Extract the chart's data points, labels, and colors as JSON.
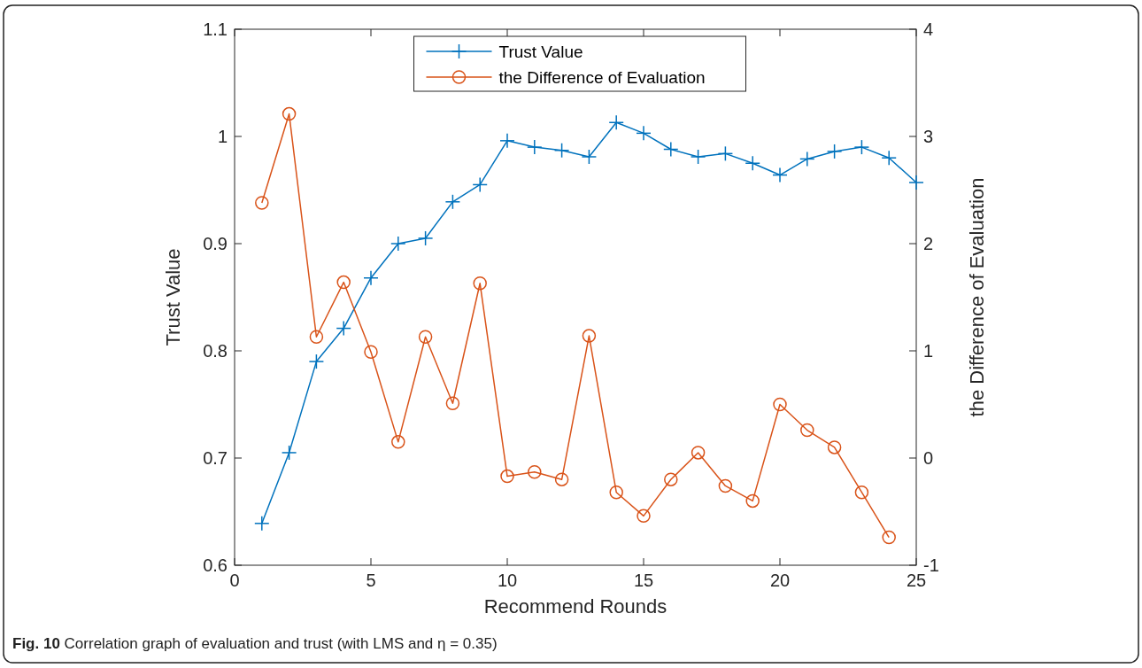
{
  "chart_data": {
    "type": "line",
    "xlabel": "Recommend Rounds",
    "ylabel": "Trust Value",
    "y2label": "the Difference of Evaluation",
    "x": [
      1,
      2,
      3,
      4,
      5,
      6,
      7,
      8,
      9,
      10,
      11,
      12,
      13,
      14,
      15,
      16,
      17,
      18,
      19,
      20,
      21,
      22,
      23,
      24,
      25
    ],
    "series": [
      {
        "name": "Trust Value",
        "color": "#0072bd",
        "marker": "cross",
        "values": [
          0.639,
          0.705,
          0.79,
          0.821,
          0.868,
          0.9,
          0.905,
          0.939,
          0.955,
          0.996,
          0.99,
          0.987,
          0.981,
          1.013,
          1.003,
          0.988,
          0.981,
          0.984,
          0.975,
          0.964,
          0.979,
          0.986,
          0.99,
          0.98,
          0.957
        ]
      },
      {
        "name": "the Difference of Evaluation",
        "color": "#d95319",
        "marker": "circle",
        "axis": "y2",
        "x": [
          1,
          2,
          3,
          4,
          5,
          6,
          7,
          8,
          9,
          10,
          11,
          12,
          13,
          14,
          15,
          16,
          17,
          18,
          19,
          20,
          21,
          22,
          23,
          24
        ],
        "values": [
          2.38,
          3.21,
          1.13,
          1.64,
          0.99,
          0.15,
          1.13,
          0.51,
          1.63,
          -0.17,
          -0.13,
          -0.2,
          1.14,
          -0.32,
          -0.54,
          -0.2,
          0.05,
          -0.26,
          -0.4,
          0.5,
          0.26,
          0.1,
          -0.32,
          -0.74
        ]
      }
    ],
    "xlim": [
      0,
      25
    ],
    "xticks": [
      0,
      5,
      10,
      15,
      20,
      25
    ],
    "ylim": [
      0.6,
      1.1
    ],
    "yticks": [
      0.6,
      0.7,
      0.8,
      0.9,
      1,
      1.1
    ],
    "y2lim": [
      -1,
      4
    ],
    "y2ticks": [
      -1,
      0,
      1,
      2,
      3,
      4
    ],
    "legend": "top",
    "grid": false,
    "annotations": [
      "Fig. 10 Correlation graph of evaluation and trust (with LMS and η = 0.35)"
    ]
  }
}
